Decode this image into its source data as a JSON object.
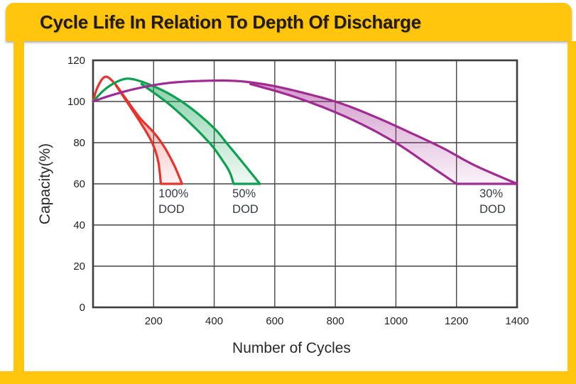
{
  "header": {
    "title": "Cycle Life In Relation To Depth Of Discharge"
  },
  "theme": {
    "accent_yellow": "#FFC60D",
    "title_color": "#231B10",
    "grid_color": "#454545",
    "border_color": "#3D3D3D",
    "tick_color": "#231F20",
    "axis_title_color": "#2A2A2A",
    "dod_label_color": "#343B46",
    "plot_background": "#FFFFFF"
  },
  "chart_data": {
    "type": "area",
    "title": "Cycle Life In Relation To Depth Of Discharge",
    "xlabel": "Number of Cycles",
    "ylabel": "Capacity(%)",
    "xlim": [
      0,
      1400
    ],
    "ylim": [
      0,
      120
    ],
    "x_ticks": [
      200,
      400,
      600,
      800,
      1000,
      1200,
      1400
    ],
    "y_ticks": [
      0,
      20,
      40,
      60,
      80,
      100,
      120
    ],
    "grid": true,
    "legend_position": "inline-labels",
    "end_of_life_capacity_pct": 60,
    "series": [
      {
        "name": "100% DOD",
        "label_line1": "100%",
        "label_line2": "DOD",
        "color": "#E8332C",
        "peak": {
          "cycles": 40,
          "capacity_pct": 112
        },
        "cycles_to_60pct_range": [
          224,
          294
        ],
        "label_at_cycles": 216,
        "outer": [
          [
            0,
            100
          ],
          [
            15,
            107
          ],
          [
            40,
            112
          ],
          [
            70,
            109
          ],
          [
            110,
            101
          ],
          [
            155,
            92
          ],
          [
            200,
            85
          ],
          [
            235,
            78
          ],
          [
            268,
            69
          ],
          [
            294,
            60
          ]
        ],
        "inner": [
          [
            75,
            108
          ],
          [
            120,
            98
          ],
          [
            160,
            89
          ],
          [
            195,
            80
          ],
          [
            215,
            71
          ],
          [
            224,
            60
          ]
        ]
      },
      {
        "name": "50% DOD",
        "label_line1": "50%",
        "label_line2": "DOD",
        "color": "#0BA14E",
        "peak": {
          "cycles": 125,
          "capacity_pct": 111
        },
        "cycles_to_60pct_range": [
          464,
          551
        ],
        "label_at_cycles": 460,
        "outer": [
          [
            0,
            100
          ],
          [
            40,
            106
          ],
          [
            85,
            110
          ],
          [
            125,
            111
          ],
          [
            190,
            108
          ],
          [
            260,
            103
          ],
          [
            330,
            96
          ],
          [
            400,
            87
          ],
          [
            440,
            80
          ],
          [
            485,
            72
          ],
          [
            551,
            60
          ]
        ],
        "inner": [
          [
            160,
            108.5
          ],
          [
            240,
            100
          ],
          [
            310,
            91
          ],
          [
            384,
            80
          ],
          [
            420,
            73
          ],
          [
            450,
            66
          ],
          [
            464,
            60
          ]
        ]
      },
      {
        "name": "30% DOD",
        "label_line1": "30%",
        "label_line2": "DOD",
        "color": "#A12B92",
        "peak": {
          "cycles": 420,
          "capacity_pct": 110
        },
        "cycles_to_60pct_range": [
          1200,
          1400
        ],
        "label_at_cycles": 1276,
        "outer": [
          [
            0,
            100
          ],
          [
            60,
            103
          ],
          [
            150,
            106.5
          ],
          [
            250,
            109
          ],
          [
            360,
            110
          ],
          [
            470,
            110
          ],
          [
            580,
            108
          ],
          [
            700,
            104
          ],
          [
            820,
            99
          ],
          [
            940,
            92
          ],
          [
            1060,
            84
          ],
          [
            1160,
            77
          ],
          [
            1260,
            69
          ],
          [
            1400,
            60
          ]
        ],
        "inner": [
          [
            520,
            108.5
          ],
          [
            650,
            103
          ],
          [
            780,
            96
          ],
          [
            900,
            88
          ],
          [
            1010,
            79
          ],
          [
            1100,
            70
          ],
          [
            1160,
            64
          ],
          [
            1200,
            60
          ]
        ]
      }
    ]
  }
}
